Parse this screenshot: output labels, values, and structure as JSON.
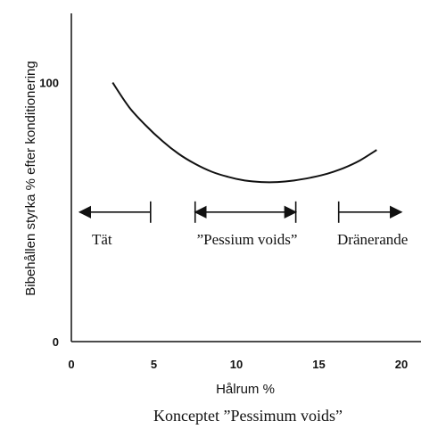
{
  "chart_data": {
    "type": "line",
    "title": "",
    "caption": "Konceptet ”Pessimum voids”",
    "xlabel": "Hålrum %",
    "ylabel": "Bibehållen styrka % efter konditionering",
    "xlim": [
      0,
      20
    ],
    "ylim": [
      0,
      125
    ],
    "xticks": [
      "0",
      "5",
      "10",
      "15",
      "20"
    ],
    "yticks": [
      {
        "value": 0,
        "label": "0"
      },
      {
        "value": 100,
        "label": "100"
      }
    ],
    "grid": false,
    "series": [
      {
        "x": [
          2.5,
          3.5,
          4.5,
          5.5,
          6.5,
          7.5,
          8.5,
          9.5,
          10.5,
          11.5,
          12.5,
          13.5,
          14.5,
          15.5,
          16.5,
          17.5,
          18.5
        ],
        "y": [
          100,
          90.5,
          83.5,
          77.5,
          72.5,
          68.6,
          65.6,
          63.6,
          62.2,
          61.6,
          61.6,
          62.2,
          63.3,
          64.8,
          67,
          70,
          74
        ]
      }
    ],
    "zones": [
      {
        "label": "Tät",
        "x_from": 0.5,
        "x_to": 4.8,
        "y": 50,
        "arrow": "left"
      },
      {
        "label": "”Pessium voids”",
        "x_from": 7.5,
        "x_to": 13.6,
        "y": 50,
        "arrow": "both"
      },
      {
        "label": "Dränerande",
        "x_from": 16.2,
        "x_to": 20,
        "y": 50,
        "arrow": "right"
      }
    ]
  }
}
